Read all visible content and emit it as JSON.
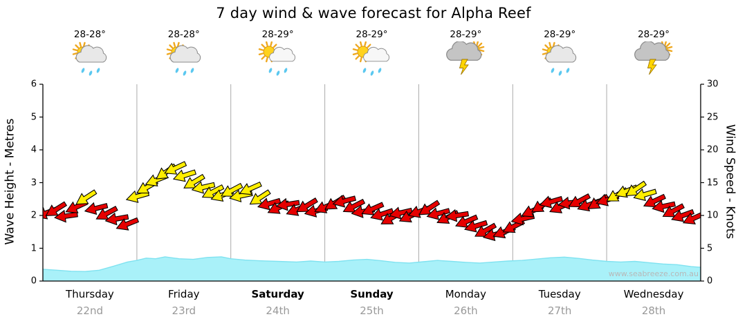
{
  "title": "7 day wind & wave forecast for Alpha Reef",
  "watermark": "www.seabreeze.com.au",
  "axes": {
    "left_label": "Wave Height - Metres",
    "right_label": "Wind Speed - Knots",
    "left_ticks": [
      0,
      1,
      2,
      3,
      4,
      5,
      6
    ],
    "right_ticks": [
      0,
      5,
      10,
      15,
      20,
      25,
      30
    ],
    "left_range": [
      0,
      6
    ],
    "right_range": [
      0,
      30
    ]
  },
  "days": [
    {
      "name": "Thursday",
      "date": "22nd",
      "temp": "28-28°",
      "icon": "sun-cloud-rain",
      "weekend": false
    },
    {
      "name": "Friday",
      "date": "23rd",
      "temp": "28-28°",
      "icon": "sun-cloud-rain",
      "weekend": false
    },
    {
      "name": "Saturday",
      "date": "24th",
      "temp": "28-29°",
      "icon": "sun-rain",
      "weekend": true
    },
    {
      "name": "Sunday",
      "date": "25th",
      "temp": "28-29°",
      "icon": "sun-rain",
      "weekend": true
    },
    {
      "name": "Monday",
      "date": "26th",
      "temp": "28-29°",
      "icon": "storm",
      "weekend": false
    },
    {
      "name": "Tuesday",
      "date": "27th",
      "temp": "28-29°",
      "icon": "sun-cloud-rain",
      "weekend": false
    },
    {
      "name": "Wednesday",
      "date": "28th",
      "temp": "28-29°",
      "icon": "storm",
      "weekend": false
    }
  ],
  "colors": {
    "wave_fill": "#a9f1f9",
    "wave_edge": "#7fe2f0",
    "grid": "#aaaaaa",
    "axis": "#000000",
    "day_text": "#000000",
    "date_text": "#999999",
    "watermark_text": "#b8b8b8",
    "arrow_moderate": "#e60000",
    "arrow_strong": "#ffee00",
    "arrow_outline": "#000000"
  },
  "icon_colors": {
    "sun": "#FFD21E",
    "sun_ray": "#EFA81F",
    "sun_edge": "#D9940E",
    "cloud_light": "#E8E8E8",
    "cloud_white": "#F7F7F7",
    "cloud_dark": "#C4C4C4",
    "cloud_edge": "#8C8C8C",
    "rain": "#5BC8F0",
    "bolt": "#FFD500",
    "bolt_edge": "#A07800"
  },
  "chart_data": {
    "type": "area+wind-arrows",
    "x_unit": "days (0 = start of Thursday 22nd, 7 = end of Wednesday 28th)",
    "left_axis": "Wave Height - Metres",
    "right_axis": "Wind Speed - Knots",
    "ylim_wave": [
      0,
      6
    ],
    "ylim_wind": [
      0,
      30
    ],
    "grid": "vertical day boundaries only",
    "strong_threshold_knots": 12.5,
    "wave_height_m": {
      "x": [
        0,
        0.15,
        0.3,
        0.45,
        0.6,
        0.75,
        0.9,
        1.0,
        1.1,
        1.2,
        1.3,
        1.45,
        1.6,
        1.75,
        1.9,
        2.0,
        2.15,
        2.3,
        2.5,
        2.7,
        2.85,
        3.0,
        3.15,
        3.3,
        3.45,
        3.6,
        3.75,
        3.9,
        4.05,
        4.2,
        4.35,
        4.5,
        4.65,
        4.8,
        4.95,
        5.1,
        5.25,
        5.4,
        5.55,
        5.7,
        5.85,
        6.0,
        6.15,
        6.3,
        6.45,
        6.6,
        6.75,
        6.9,
        7.0
      ],
      "y": [
        0.36,
        0.33,
        0.3,
        0.29,
        0.33,
        0.45,
        0.58,
        0.63,
        0.7,
        0.68,
        0.74,
        0.68,
        0.66,
        0.72,
        0.74,
        0.68,
        0.64,
        0.62,
        0.6,
        0.58,
        0.61,
        0.58,
        0.6,
        0.64,
        0.66,
        0.62,
        0.57,
        0.55,
        0.59,
        0.63,
        0.6,
        0.57,
        0.55,
        0.58,
        0.61,
        0.63,
        0.67,
        0.71,
        0.73,
        0.69,
        0.64,
        0.6,
        0.58,
        0.6,
        0.56,
        0.52,
        0.5,
        0.44,
        0.42
      ]
    },
    "wind_knots": {
      "x": [
        0.04,
        0.14,
        0.25,
        0.36,
        0.46,
        0.57,
        0.68,
        0.79,
        0.9,
        1.01,
        1.11,
        1.21,
        1.31,
        1.41,
        1.51,
        1.61,
        1.71,
        1.81,
        1.91,
        2.01,
        2.11,
        2.21,
        2.31,
        2.41,
        2.51,
        2.61,
        2.71,
        2.81,
        2.91,
        3.01,
        3.11,
        3.21,
        3.31,
        3.41,
        3.51,
        3.61,
        3.71,
        3.81,
        3.91,
        4.01,
        4.11,
        4.21,
        4.31,
        4.41,
        4.51,
        4.61,
        4.71,
        4.81,
        4.91,
        5.01,
        5.11,
        5.21,
        5.31,
        5.41,
        5.51,
        5.61,
        5.71,
        5.81,
        5.91,
        6.01,
        6.11,
        6.21,
        6.31,
        6.41,
        6.51,
        6.61,
        6.71,
        6.81,
        6.93
      ],
      "speed": [
        10.4,
        10.9,
        9.9,
        11.3,
        12.7,
        11.1,
        10.3,
        9.5,
        8.7,
        12.9,
        14.3,
        15.4,
        16.6,
        17.2,
        16.1,
        15.1,
        14.3,
        13.6,
        13.1,
        13.8,
        13.0,
        14.1,
        12.7,
        11.8,
        11.2,
        11.7,
        10.9,
        11.5,
        10.7,
        11.3,
        11.9,
        12.2,
        11.4,
        10.6,
        11.0,
        10.2,
        9.6,
        10.4,
        9.9,
        10.6,
        11.1,
        10.3,
        9.7,
        10.0,
        9.1,
        8.4,
        7.7,
        7.1,
        7.5,
        8.3,
        9.5,
        10.7,
        11.5,
        12.1,
        11.3,
        11.9,
        12.2,
        11.6,
        12.0,
        12.4,
        13.1,
        13.7,
        14.0,
        13.2,
        12.2,
        11.4,
        10.7,
        10.0,
        9.6
      ],
      "dir_deg": [
        160,
        148,
        172,
        155,
        147,
        166,
        152,
        170,
        158,
        164,
        150,
        158,
        145,
        155,
        162,
        149,
        167,
        153,
        160,
        152,
        168,
        156,
        147,
        164,
        155,
        171,
        158,
        149,
        166,
        157,
        148,
        165,
        153,
        170,
        156,
        162,
        150,
        167,
        155,
        160,
        147,
        165,
        154,
        171,
        157,
        163,
        151,
        166,
        158,
        153,
        167,
        155,
        148,
        164,
        156,
        171,
        152,
        160,
        147,
        162,
        150,
        158,
        146,
        164,
        155,
        168,
        152,
        160,
        156
      ]
    }
  }
}
